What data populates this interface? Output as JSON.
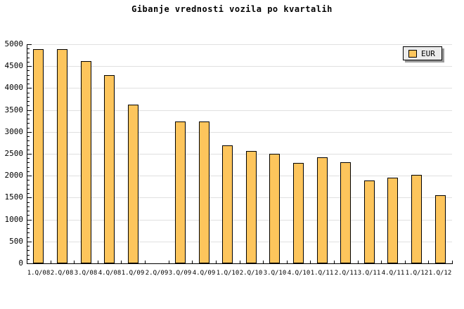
{
  "chart_data": {
    "type": "bar",
    "title": "Gibanje vrednosti vozila po kvartalih",
    "xlabel": "",
    "ylabel": "",
    "categories": [
      "1.Q/08",
      "2.Q/08",
      "3.Q/08",
      "4.Q/08",
      "1.Q/09",
      "2.Q/09",
      "3.Q/09",
      "4.Q/09",
      "1.Q/10",
      "2.Q/10",
      "3.Q/10",
      "4.Q/10",
      "1.Q/11",
      "2.Q/11",
      "3.Q/11",
      "4.Q/11",
      "1.Q/12",
      "1.Q/12"
    ],
    "values": [
      4890,
      4890,
      4620,
      4300,
      3620,
      null,
      3240,
      3240,
      2700,
      2570,
      2500,
      2290,
      2420,
      2300,
      1890,
      1960,
      2020,
      1560
    ],
    "ylim": [
      0,
      5000
    ],
    "y_tick_step": 500,
    "y_minor_tick_step": 100,
    "y_tick_labels": [
      "0",
      "500",
      "1000",
      "1500",
      "2000",
      "2500",
      "3000",
      "3500",
      "4000",
      "4500",
      "5000"
    ],
    "grid": "horizontal-major",
    "legend_position": "top-right",
    "legend": [
      {
        "label": "EUR"
      }
    ]
  },
  "colors": {
    "background": "#FFFFFF",
    "bar_fill": "#FDC55C",
    "bar_border": "#000000",
    "grid": "#E0E0E0",
    "axis": "#000000",
    "legend_bg": "#ECECEC",
    "legend_shadow": "#9A9A9A"
  }
}
